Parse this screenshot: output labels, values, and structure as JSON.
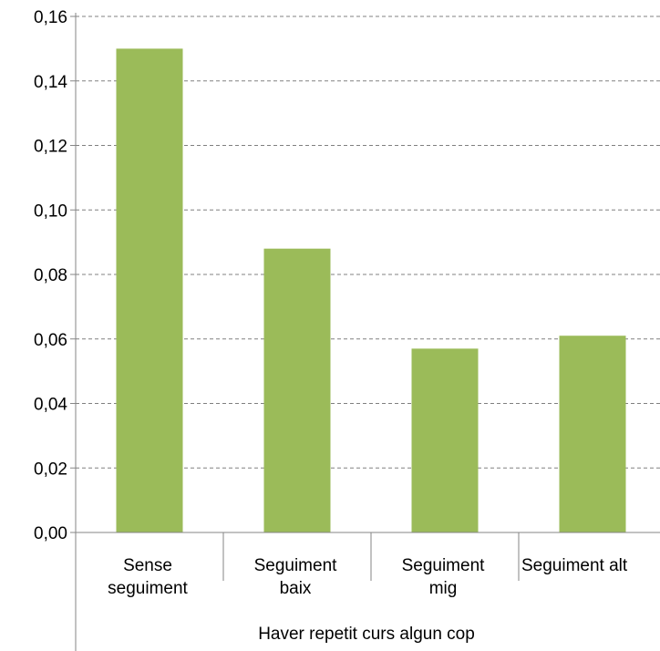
{
  "chart_data": {
    "type": "bar",
    "title": "",
    "xlabel": "",
    "ylabel": "",
    "group_label": "Haver repetit curs algun cop",
    "categories": [
      [
        "Sense",
        "seguiment"
      ],
      [
        "Seguiment",
        "baix"
      ],
      [
        "Seguiment",
        "mig"
      ],
      [
        "Seguiment  alt"
      ]
    ],
    "values": [
      0.15,
      0.088,
      0.057,
      0.061
    ],
    "ylim": [
      0,
      0.16
    ],
    "yticks": [
      0,
      0.02,
      0.04,
      0.06,
      0.08,
      0.1,
      0.12,
      0.14,
      0.16
    ],
    "ytick_labels": [
      "0,00",
      "0,02",
      "0,04",
      "0,06",
      "0,08",
      "0,10",
      "0,12",
      "0,14",
      "0,16"
    ],
    "grid": true,
    "bar_color": "#9bbb59",
    "grid_color": "#808080",
    "axis_color": "#868686"
  }
}
